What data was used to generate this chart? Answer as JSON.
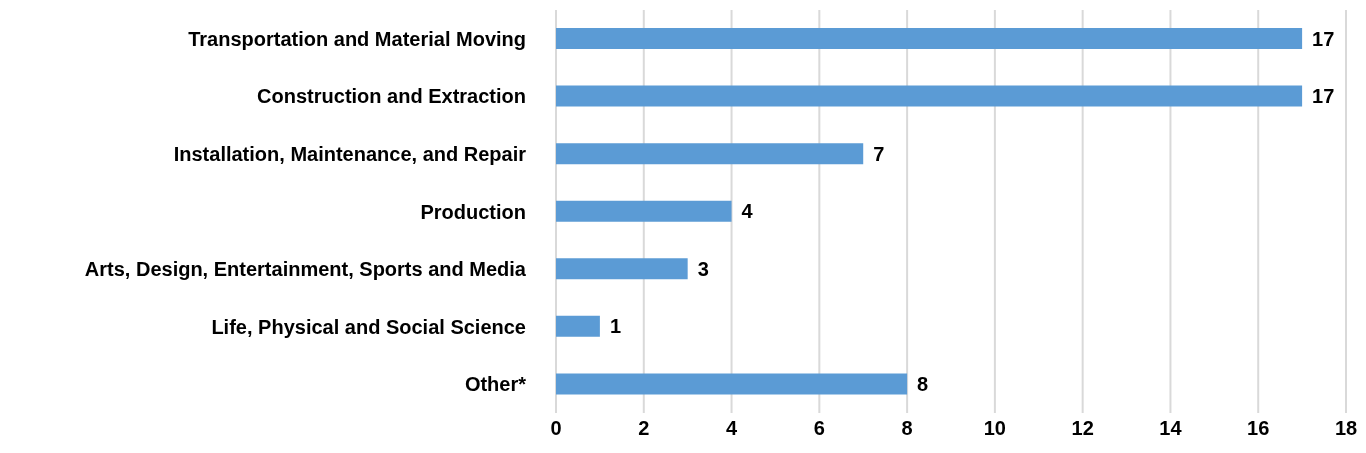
{
  "chart_data": {
    "type": "bar",
    "orientation": "horizontal",
    "categories": [
      "Transportation and Material Moving",
      "Construction and Extraction",
      "Installation, Maintenance, and Repair",
      "Production",
      "Arts, Design, Entertainment, Sports and Media",
      "Life, Physical and Social Science",
      "Other*"
    ],
    "values": [
      17,
      17,
      7,
      4,
      3,
      1,
      8
    ],
    "color": "#5b9bd5",
    "xlim": [
      0,
      18
    ],
    "xticks": [
      0,
      2,
      4,
      6,
      8,
      10,
      12,
      14,
      16,
      18
    ],
    "grid": "x",
    "data_labels": true
  }
}
